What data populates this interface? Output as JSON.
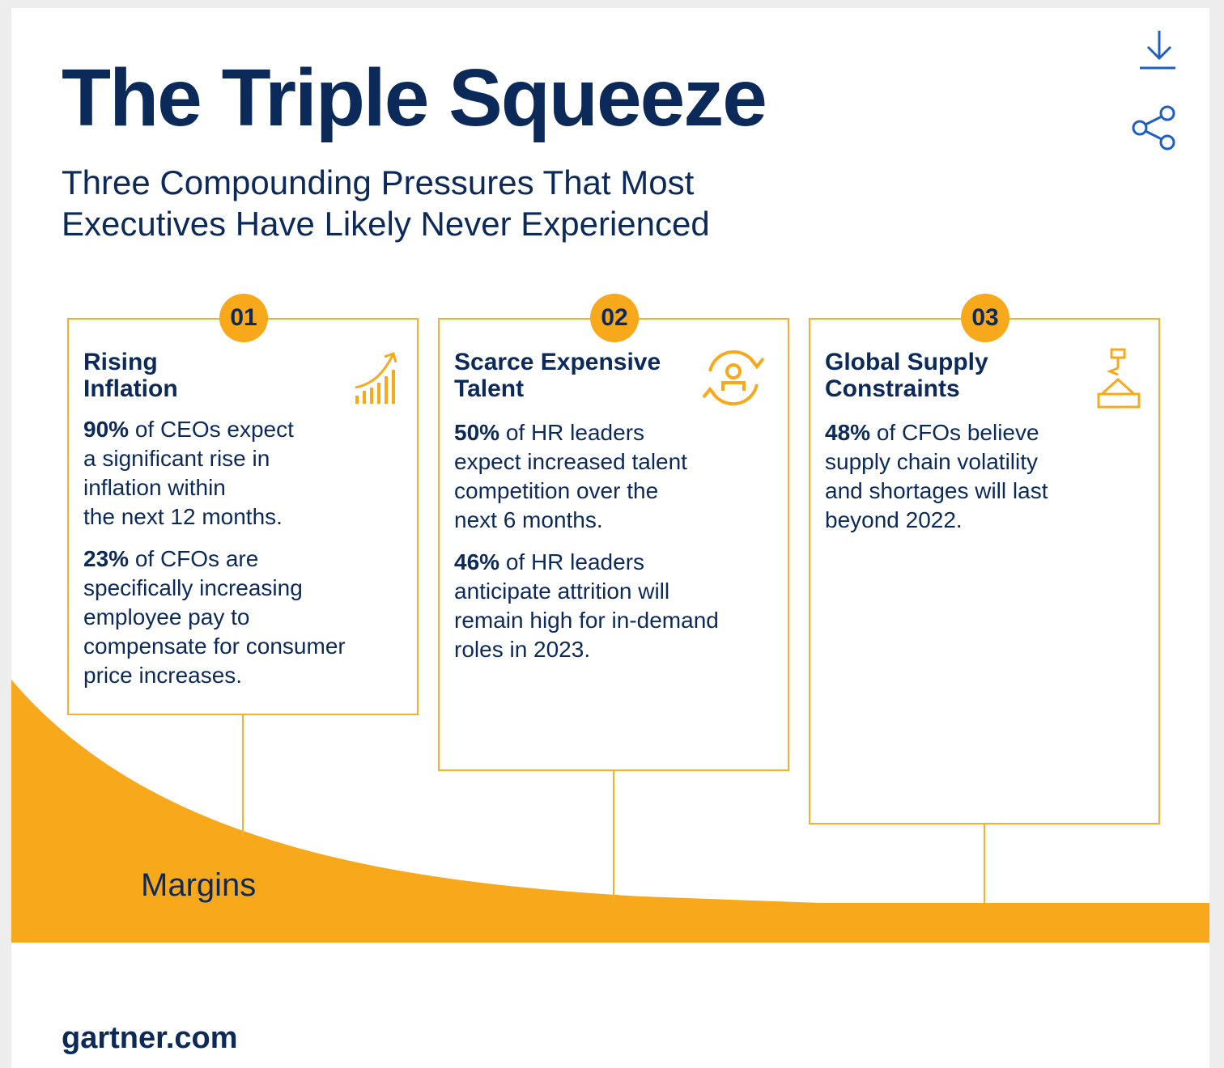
{
  "title": "The Triple Squeeze",
  "subtitle_line1": "Three Compounding Pressures That Most",
  "subtitle_line2": "Executives Have Likely Never Experienced",
  "toolbar": {
    "download_icon": "download-icon",
    "share_icon": "share-icon"
  },
  "colors": {
    "navy": "#0b2a5a",
    "accent": "#f7a81b",
    "icon_blue": "#1f5fbf"
  },
  "cards": [
    {
      "number": "01",
      "title_line1": "Rising",
      "title_line2": "Inflation",
      "icon": "rising-chart-icon",
      "stats": [
        {
          "value": "90%",
          "text": " of CEOs expect",
          "lines": [
            "a significant rise in",
            "inflation within",
            "the next 12 months."
          ]
        },
        {
          "value": "23%",
          "text": " of CFOs are",
          "lines": [
            "specifically increasing",
            "employee pay to",
            "compensate for consumer",
            "price increases."
          ]
        }
      ]
    },
    {
      "number": "02",
      "title_line1": "Scarce Expensive",
      "title_line2": "Talent",
      "icon": "talent-cycle-icon",
      "stats": [
        {
          "value": "50%",
          "text": " of HR leaders",
          "lines": [
            "expect increased talent",
            "competition over the",
            "next 6 months."
          ]
        },
        {
          "value": "46%",
          "text": " of HR leaders",
          "lines": [
            "anticipate attrition will",
            "remain high for in-demand",
            "roles in 2023."
          ]
        }
      ]
    },
    {
      "number": "03",
      "title_line1": "Global Supply",
      "title_line2": "Constraints",
      "icon": "crane-cargo-icon",
      "stats": [
        {
          "value": "48%",
          "text": " of CFOs believe",
          "lines": [
            "supply chain volatility",
            "and shortages will last",
            "beyond 2022."
          ]
        }
      ]
    }
  ],
  "margins_label": "Margins",
  "footer": "gartner.com"
}
